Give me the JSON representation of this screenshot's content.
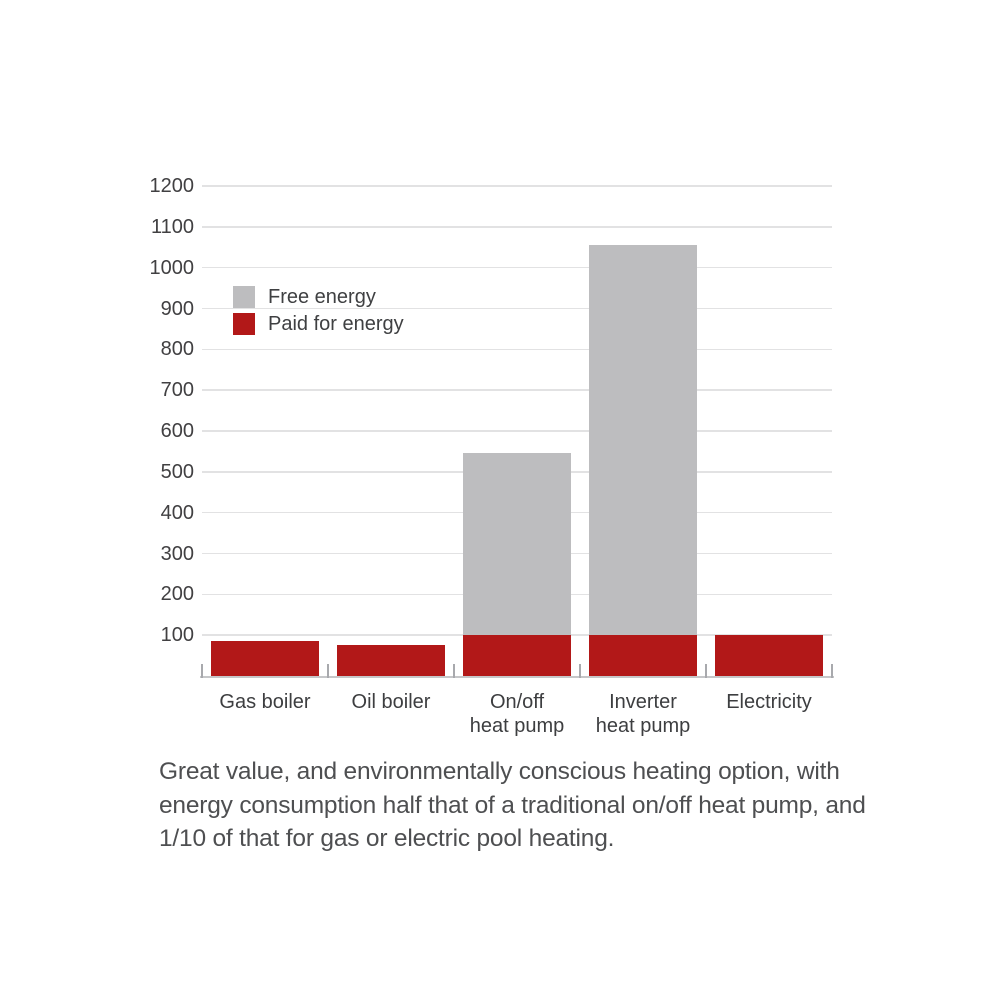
{
  "chart_data": {
    "type": "bar",
    "stacked": true,
    "title": "",
    "xlabel": "",
    "ylabel": "",
    "categories": [
      "Gas boiler",
      "Oil boiler",
      "On/off heat pump",
      "Inverter heat pump",
      "Electricity"
    ],
    "category_label_lines": [
      [
        "Gas boiler"
      ],
      [
        "Oil boiler"
      ],
      [
        "On/off",
        "heat pump"
      ],
      [
        "Inverter",
        "heat pump"
      ],
      [
        "Electricity"
      ]
    ],
    "series": [
      {
        "name": "Paid for energy",
        "color": "#b21818",
        "values": [
          85,
          75,
          100,
          100,
          100
        ]
      },
      {
        "name": "Free energy",
        "color": "#bdbdbf",
        "values": [
          0,
          0,
          445,
          955,
          0
        ]
      }
    ],
    "totals": [
      85,
      75,
      545,
      1055,
      100
    ],
    "ylim": [
      0,
      1200
    ],
    "ytick_step": 100,
    "yticks": [
      100,
      200,
      300,
      400,
      500,
      600,
      700,
      800,
      900,
      1000,
      1100,
      1200
    ],
    "grid": true,
    "legend_position": "inside-upper-left",
    "legend": [
      {
        "label": "Free energy",
        "color": "#bdbdbf"
      },
      {
        "label": "Paid for energy",
        "color": "#b21818"
      }
    ]
  },
  "caption": {
    "text": "Great value, and environmentally conscious heating option, with energy consumption half that of a traditional on/off heat pump, and 1/10 of that for gas or electric pool heating.",
    "lines": [
      "Great value, and environmentally conscious heating option, with",
      "energy consumption half that of a traditional on/off heat pump, and",
      "1/10 of that for gas or electric pool heating."
    ]
  },
  "colors": {
    "background": "#ffffff",
    "gridline": "#e2e2e3",
    "axis_line": "#c6c7c9",
    "tick": "#a8a9ad",
    "axis_text": "#414042",
    "caption_text": "#4e4f51",
    "free_energy": "#bdbdbf",
    "paid_energy": "#b21818"
  }
}
